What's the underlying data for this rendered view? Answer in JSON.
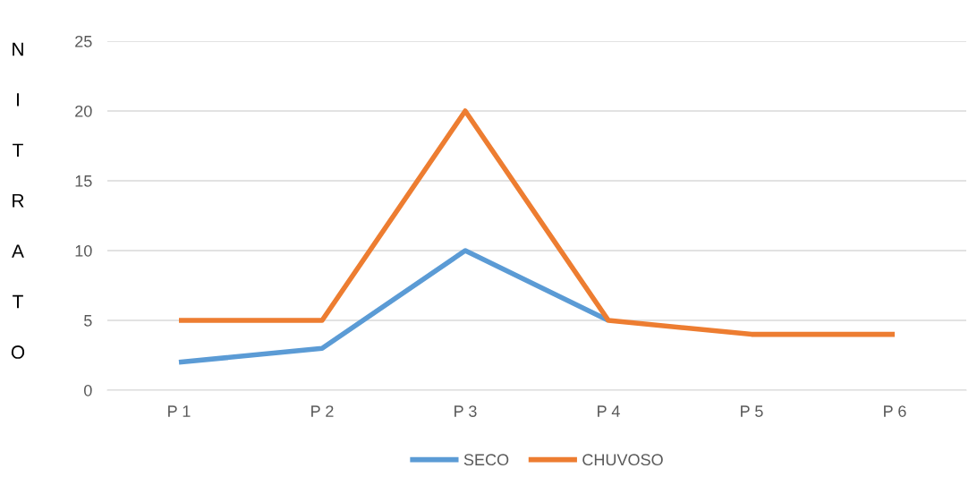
{
  "chart_data": {
    "type": "line",
    "ylabel": "NITRATO",
    "categories": [
      "P 1",
      "P 2",
      "P 3",
      "P 4",
      "P 5",
      "P 6"
    ],
    "series": [
      {
        "name": "SECO",
        "color": "#5b9bd5",
        "values": [
          2,
          3,
          10,
          5,
          null,
          null
        ]
      },
      {
        "name": "CHUVOSO",
        "color": "#ed7d31",
        "values": [
          5,
          5,
          20,
          5,
          4,
          4
        ]
      }
    ],
    "ylim": [
      0,
      25
    ],
    "yticks": [
      0,
      5,
      10,
      15,
      20,
      25
    ],
    "grid": "y",
    "legend": "bottom",
    "marker": "none",
    "line_style": "solid"
  }
}
